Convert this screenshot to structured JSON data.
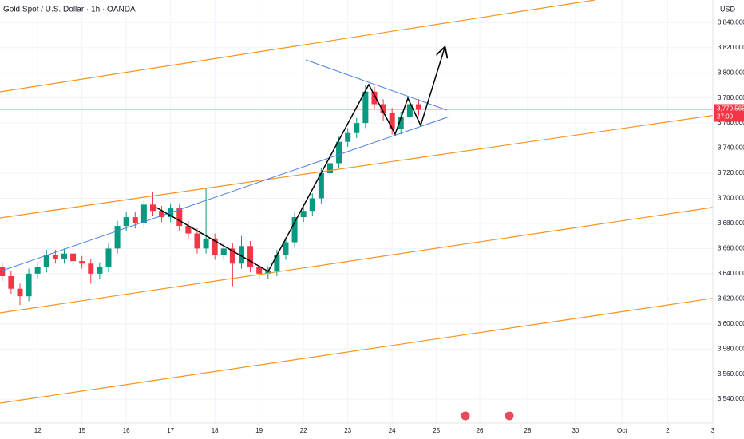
{
  "chart_data": {
    "type": "candlestick",
    "title": "Gold Spot / U.S. Dollar · 1h · OANDA",
    "currency": "USD",
    "x": [
      -0.8,
      -0.6,
      -0.4,
      -0.2,
      0,
      0.2,
      0.4,
      0.6,
      0.8,
      1.0,
      1.2,
      1.4,
      1.6,
      1.8,
      2.0,
      2.2,
      2.4,
      2.6,
      2.8,
      3.0,
      3.2,
      3.4,
      3.6,
      3.8,
      4.0,
      4.2,
      4.4,
      4.6,
      4.8,
      5.0,
      5.2,
      5.4,
      5.6,
      5.8,
      6.0,
      6.2,
      6.4,
      6.6,
      6.8,
      7.0,
      7.2,
      7.4,
      7.6,
      7.8,
      8.0,
      8.2,
      8.4,
      8.6
    ],
    "open": [
      3645,
      3638,
      3628,
      3622,
      3640,
      3645,
      3655,
      3652,
      3656,
      3650,
      3648,
      3640,
      3645,
      3660,
      3678,
      3685,
      3680,
      3695,
      3690,
      3685,
      3692,
      3678,
      3672,
      3660,
      3668,
      3655,
      3660,
      3648,
      3662,
      3645,
      3640,
      3642,
      3655,
      3665,
      3685,
      3690,
      3700,
      3720,
      3728,
      3745,
      3752,
      3760,
      3785,
      3775,
      3768,
      3755,
      3765,
      3775
    ],
    "high": [
      3649,
      3642,
      3632,
      3644,
      3649,
      3659,
      3659,
      3660,
      3660,
      3654,
      3652,
      3649,
      3664,
      3682,
      3689,
      3689,
      3699,
      3705,
      3694,
      3696,
      3696,
      3682,
      3676,
      3708,
      3672,
      3664,
      3664,
      3670,
      3666,
      3649,
      3646,
      3659,
      3669,
      3689,
      3694,
      3704,
      3724,
      3732,
      3749,
      3756,
      3764,
      3790,
      3789,
      3779,
      3772,
      3769,
      3779,
      3779
    ],
    "low": [
      3634,
      3624,
      3615,
      3618,
      3636,
      3641,
      3648,
      3648,
      3646,
      3644,
      3632,
      3636,
      3641,
      3656,
      3674,
      3676,
      3676,
      3686,
      3681,
      3681,
      3674,
      3668,
      3656,
      3656,
      3651,
      3651,
      3630,
      3644,
      3641,
      3636,
      3636,
      3638,
      3651,
      3661,
      3681,
      3686,
      3696,
      3716,
      3724,
      3741,
      3748,
      3756,
      3771,
      3762,
      3751,
      3751,
      3761,
      3766
    ],
    "close": [
      3638,
      3628,
      3622,
      3640,
      3645,
      3655,
      3652,
      3656,
      3650,
      3648,
      3640,
      3645,
      3660,
      3678,
      3685,
      3680,
      3695,
      3690,
      3685,
      3692,
      3678,
      3672,
      3660,
      3668,
      3655,
      3660,
      3648,
      3662,
      3645,
      3640,
      3642,
      3655,
      3665,
      3685,
      3690,
      3700,
      3720,
      3728,
      3745,
      3752,
      3760,
      3785,
      3775,
      3768,
      3755,
      3765,
      3775,
      3770.565
    ],
    "up_color": "#089981",
    "down_color": "#f23645",
    "xlim": [
      -0.85,
      15.24
    ],
    "xticks": [
      {
        "value": 0,
        "label": "12"
      },
      {
        "value": 1,
        "label": "15"
      },
      {
        "value": 2,
        "label": "16"
      },
      {
        "value": 3,
        "label": "17"
      },
      {
        "value": 4,
        "label": "18"
      },
      {
        "value": 5,
        "label": "19"
      },
      {
        "value": 6,
        "label": "22"
      },
      {
        "value": 7,
        "label": "23"
      },
      {
        "value": 8,
        "label": "24"
      },
      {
        "value": 9,
        "label": "25"
      },
      {
        "value": 9.98,
        "label": "26"
      },
      {
        "value": 11.06,
        "label": "28"
      },
      {
        "value": 12.14,
        "label": "30"
      },
      {
        "value": 13.19,
        "label": "Oct"
      },
      {
        "value": 14.22,
        "label": "2"
      },
      {
        "value": 15.24,
        "label": "3"
      }
    ],
    "ylim": [
      3521,
      3858
    ],
    "yticks": [
      {
        "value": 3540,
        "label": "3,540.000"
      },
      {
        "value": 3560,
        "label": "3,560.000"
      },
      {
        "value": 3580,
        "label": "3,580.000"
      },
      {
        "value": 3600,
        "label": "3,600.000"
      },
      {
        "value": 3620,
        "label": "3,620.000"
      },
      {
        "value": 3640,
        "label": "3,640.000"
      },
      {
        "value": 3660,
        "label": "3,660.000"
      },
      {
        "value": 3680,
        "label": "3,680.000"
      },
      {
        "value": 3700,
        "label": "3,700.000"
      },
      {
        "value": 3720,
        "label": "3,720.000"
      },
      {
        "value": 3740,
        "label": "3,740.000"
      },
      {
        "value": 3760,
        "label": "3,760.000"
      },
      {
        "value": 3780,
        "label": "3,780.000"
      },
      {
        "value": 3800,
        "label": "3,800.000"
      },
      {
        "value": 3820,
        "label": "3,820.000"
      },
      {
        "value": 3840,
        "label": "3,840.000"
      }
    ],
    "grid": true,
    "last_price": {
      "value": 3770.565,
      "label": "3,770.565"
    },
    "countdown": "27:00"
  }
}
